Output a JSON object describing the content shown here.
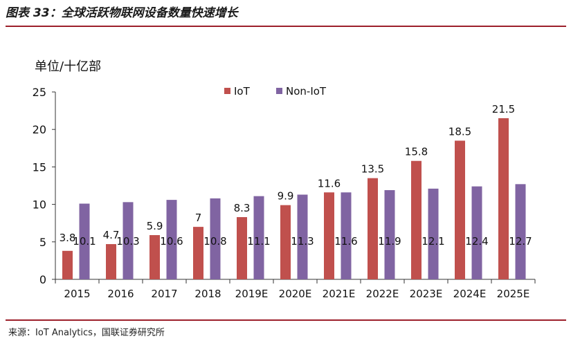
{
  "figure_title": "图表 33：全球活跃物联网设备数量快速增长",
  "source": "来源：IoT Analytics，国联证券研究所",
  "colors": {
    "iot": "#c0504d",
    "noniot": "#8064a2",
    "rule": "#9c1f2a"
  },
  "chart_data": {
    "type": "bar",
    "title": "",
    "unit_label": "单位/十亿部",
    "categories": [
      "2015",
      "2016",
      "2017",
      "2018",
      "2019E",
      "2020E",
      "2021E",
      "2022E",
      "2023E",
      "2024E",
      "2025E"
    ],
    "series": [
      {
        "name": "IoT",
        "values": [
          3.8,
          4.7,
          5.9,
          7,
          8.3,
          9.9,
          11.6,
          13.5,
          15.8,
          18.5,
          21.5
        ],
        "labels": [
          "3.8",
          "4.7",
          "5.9",
          "7",
          "8.3",
          "9.9",
          "11.6",
          "13.5",
          "15.8",
          "18.5",
          "21.5"
        ]
      },
      {
        "name": "Non-IoT",
        "values": [
          10.1,
          10.3,
          10.6,
          10.8,
          11.1,
          11.3,
          11.6,
          11.9,
          12.1,
          12.4,
          12.7
        ],
        "labels": [
          "10.1",
          "10.3",
          "10.6",
          "10.8",
          "11.1",
          "11.3",
          "11.6",
          "11.9",
          "12.1",
          "12.4",
          "12.7"
        ]
      }
    ],
    "ylim": [
      0,
      25
    ],
    "yticks": [
      0,
      5,
      10,
      15,
      20,
      25
    ],
    "grid": false,
    "legend_position": "top-center"
  }
}
